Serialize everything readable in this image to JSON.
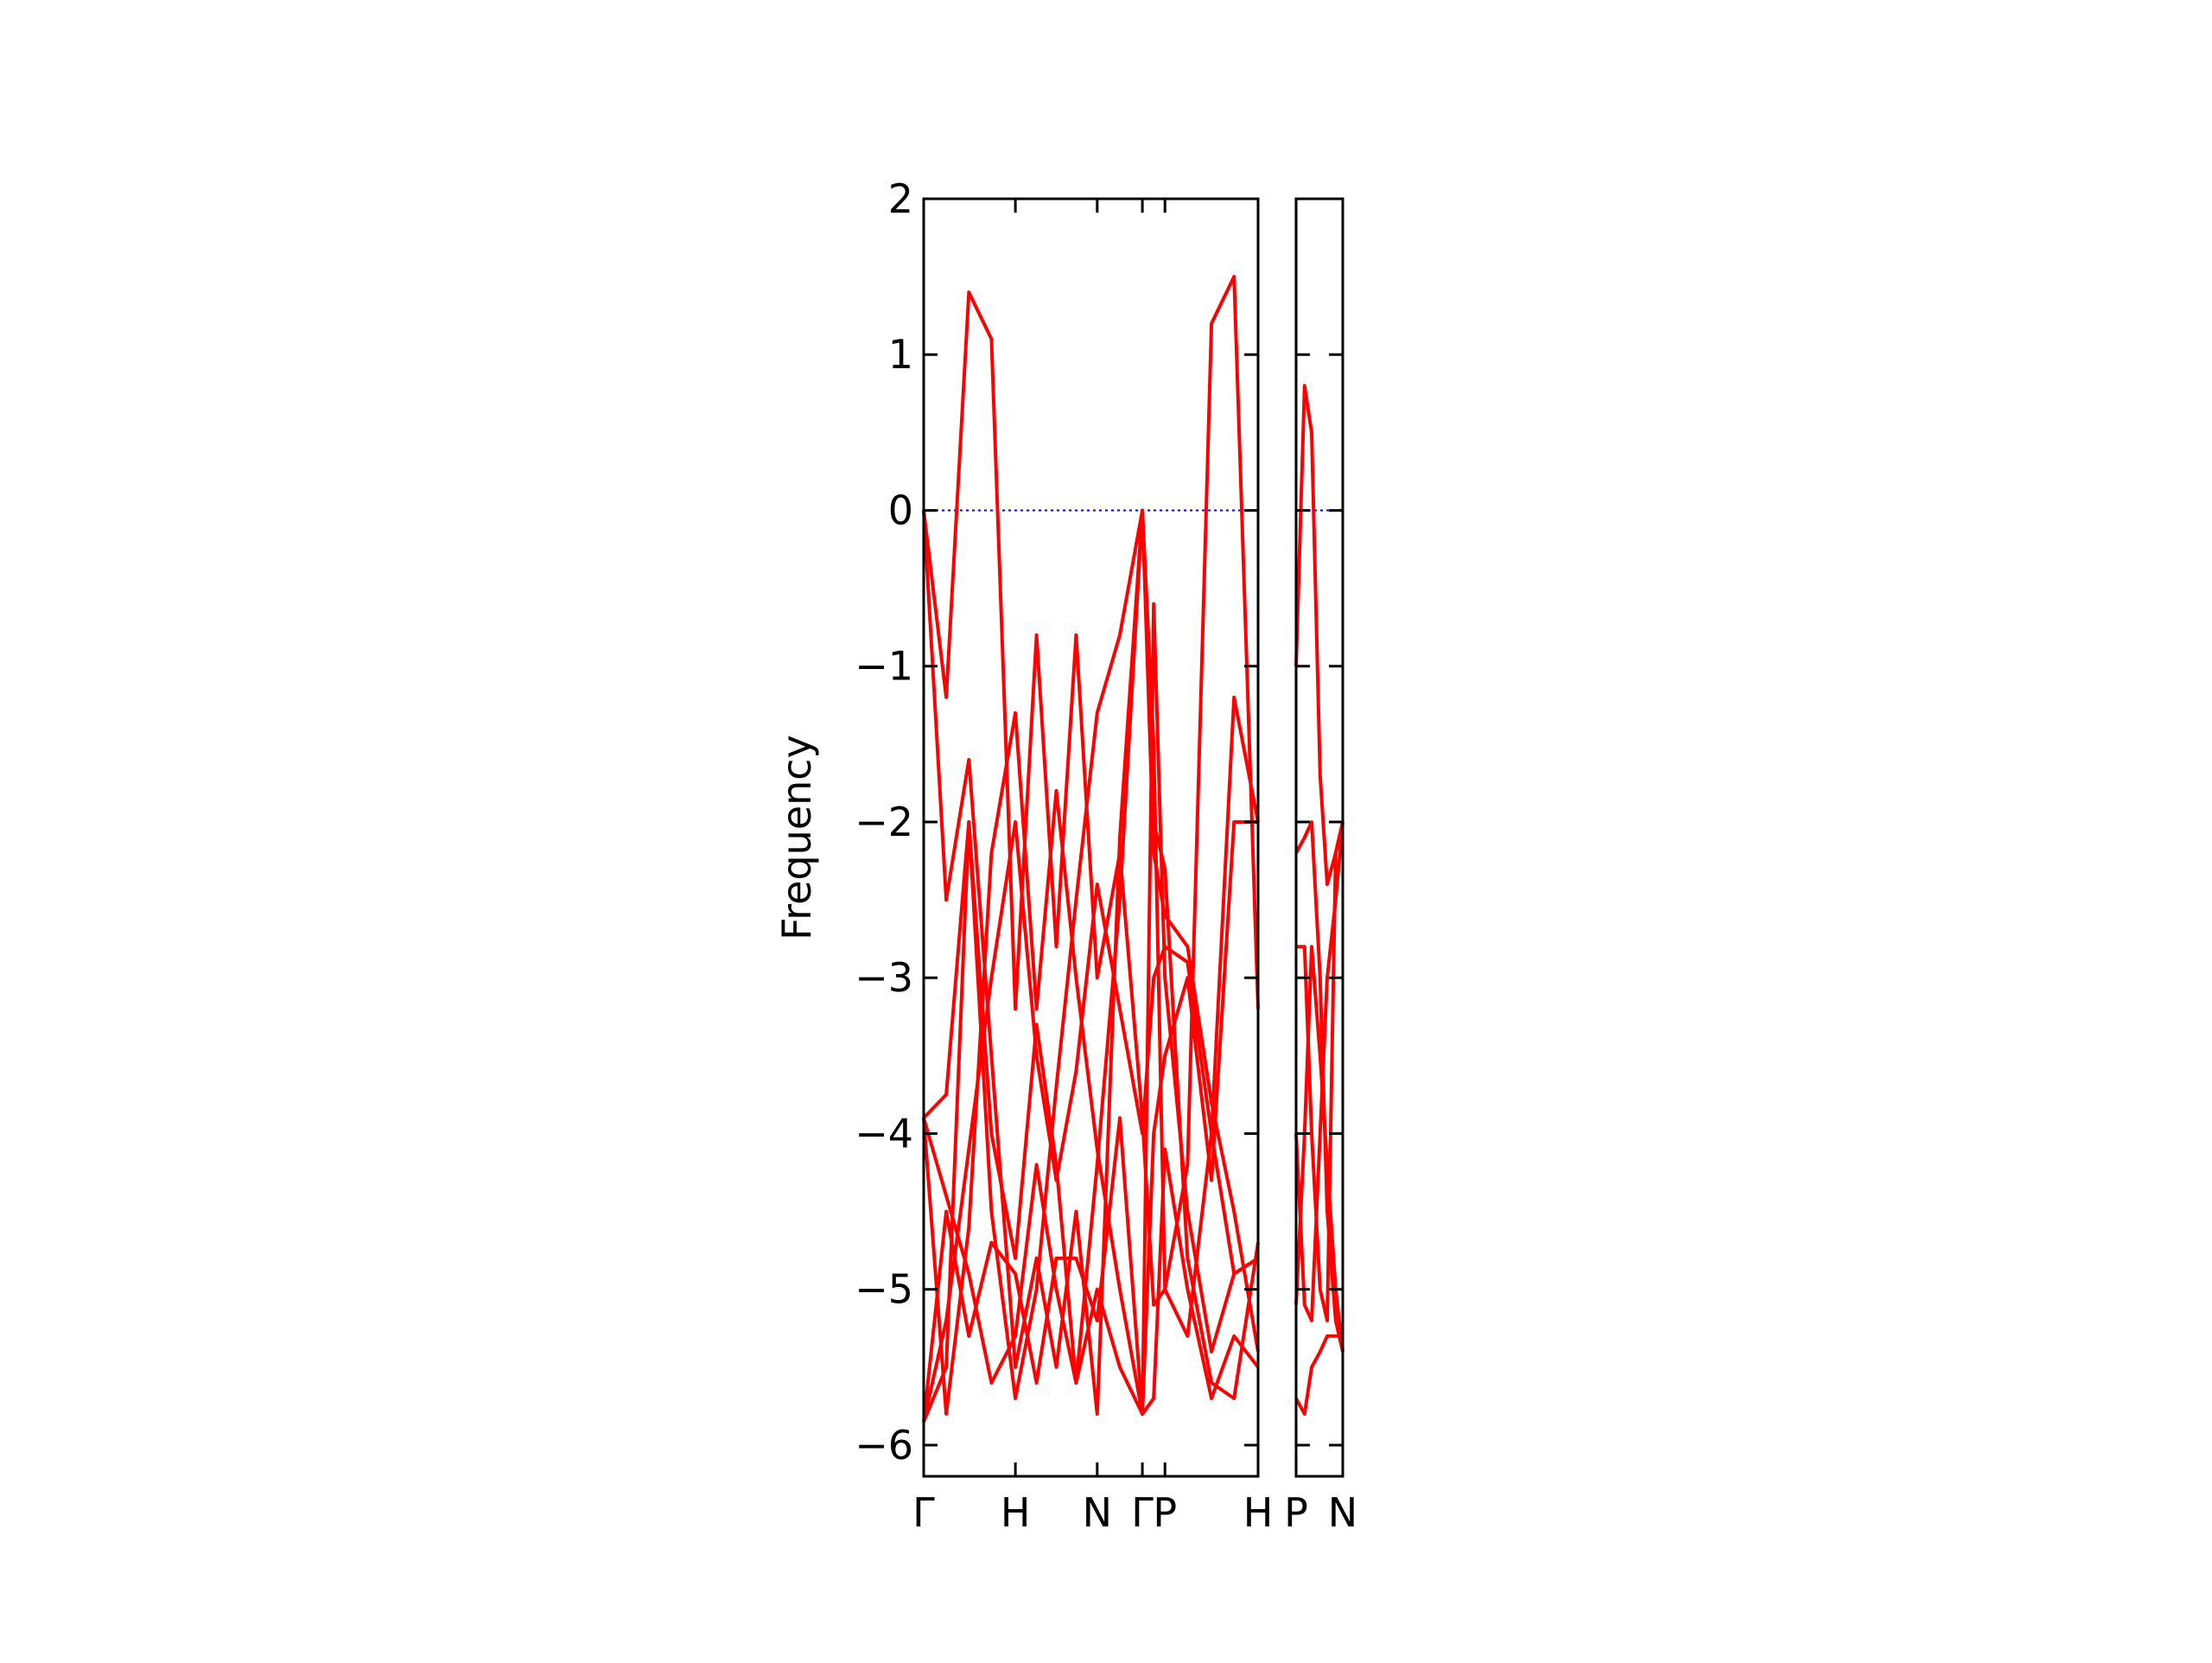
{
  "chart_data": [
    {
      "type": "line",
      "y_label": "Frequency",
      "x": [
        0,
        16,
        32,
        48,
        65,
        80,
        94,
        108,
        123,
        139,
        155,
        163,
        171,
        187,
        204,
        220,
        237
      ],
      "xlim": [
        0,
        237
      ],
      "xticks": [
        {
          "value": 0,
          "label": "Γ"
        },
        {
          "value": 65,
          "label": "H"
        },
        {
          "value": 123,
          "label": "N"
        },
        {
          "value": 155,
          "label": "Γ"
        },
        {
          "value": 171,
          "label": "P"
        },
        {
          "value": 237,
          "label": "H"
        }
      ],
      "ylim": [
        -6.2,
        2
      ],
      "yticks": [
        {
          "value": -6,
          "label": "−6"
        },
        {
          "value": -5,
          "label": "−5"
        },
        {
          "value": -4,
          "label": "−4"
        },
        {
          "value": -3,
          "label": "−3"
        },
        {
          "value": -2,
          "label": "−2"
        },
        {
          "value": -1,
          "label": "−1"
        },
        0,
        1,
        2
      ],
      "show_ytick_labels": true,
      "zero_line": {
        "value": 0,
        "color": "#0000ff"
      },
      "series": [
        {
          "color": "#ff0000",
          "values": [
            0,
            -1.2,
            1.4,
            1.1,
            -3.2,
            -0.8,
            -2.8,
            -0.8,
            -3.0,
            -2.2,
            -3.9,
            -5.1,
            -5.0,
            -4.2,
            1.2,
            1.5,
            -3.2
          ]
        },
        {
          "color": "#ff0000",
          "values": [
            0,
            -2.5,
            -1.6,
            -3.5,
            -5.5,
            -4.8,
            -5.5,
            -4.5,
            -5.8,
            -2.1,
            0,
            -2.2,
            -2.6,
            -2.8,
            -3.8,
            -4.5,
            -5.4
          ]
        },
        {
          "color": "#ff0000",
          "values": [
            -3.9,
            -5.8,
            -4.6,
            -2.2,
            -1.3,
            -3.2,
            -1.8,
            -3.0,
            -4.1,
            -5.0,
            -5.8,
            -0.6,
            -3.0,
            -4.5,
            -5.4,
            -4.9,
            -4.8
          ]
        },
        {
          "color": "#ff0000",
          "values": [
            -3.9,
            -3.75,
            -2.0,
            -4.0,
            -4.8,
            -3.3,
            -4.2,
            -5.6,
            -4.2,
            -2.5,
            0,
            -2.0,
            -2.3,
            -4.8,
            -5.6,
            -5.7,
            -4.7
          ]
        },
        {
          "color": "#ff0000",
          "values": [
            -5.85,
            -4.5,
            -5.3,
            -4.7,
            -4.9,
            -5.6,
            -4.8,
            -4.8,
            -5.2,
            -3.9,
            -5.8,
            -4.0,
            -3.5,
            -3.0,
            -4.3,
            -2.0,
            -2.0
          ]
        },
        {
          "color": "#ff0000",
          "values": [
            -5.85,
            -5.5,
            -2.0,
            -4.5,
            -5.7,
            -5.0,
            -3.7,
            -2.5,
            -1.3,
            -0.8,
            0,
            -1.5,
            -5.0,
            -5.3,
            -4.0,
            -1.2,
            -2.0
          ]
        },
        {
          "color": "#ff0000",
          "values": [
            -3.9,
            -4.4,
            -4.9,
            -5.6,
            -5.3,
            -4.2,
            -5.0,
            -5.6,
            -5.0,
            -5.5,
            -5.8,
            -5.7,
            -4.1,
            -5.0,
            -5.7,
            -5.3,
            -5.5
          ]
        },
        {
          "color": "#ff0000",
          "values": [
            -5.85,
            -5.2,
            -4.1,
            -3.0,
            -2.0,
            -3.5,
            -4.3,
            -3.6,
            -2.4,
            -3.2,
            -4.0,
            -3.0,
            -2.8,
            -2.9,
            -4.0,
            -4.9,
            -4.8
          ]
        }
      ]
    },
    {
      "type": "line",
      "x": [
        0,
        6,
        11,
        17,
        22,
        28,
        33
      ],
      "xlim": [
        0,
        33
      ],
      "xticks": [
        {
          "value": 0,
          "label": "P"
        },
        {
          "value": 33,
          "label": "N"
        }
      ],
      "ylim": [
        -6.2,
        2
      ],
      "yticks": [
        -6,
        -5,
        -4,
        -3,
        -2,
        -1,
        0,
        1,
        2
      ],
      "show_ytick_labels": false,
      "zero_line": {
        "value": 0,
        "color": "#0000ff"
      },
      "series": [
        {
          "color": "#ff0000",
          "values": [
            -1.0,
            0.8,
            0.5,
            -1.7,
            -2.4,
            -2.2,
            -2.0
          ]
        },
        {
          "color": "#ff0000",
          "values": [
            -2.2,
            -2.1,
            -2.0,
            -3.0,
            -4.5,
            -5.2,
            -5.4
          ]
        },
        {
          "color": "#ff0000",
          "values": [
            -2.8,
            -2.8,
            -4.0,
            -5.0,
            -5.2,
            -2.2,
            -2.0
          ]
        },
        {
          "color": "#ff0000",
          "values": [
            -5.7,
            -5.8,
            -5.5,
            -5.4,
            -5.3,
            -5.3,
            -5.3
          ]
        },
        {
          "color": "#ff0000",
          "values": [
            -4.0,
            -5.1,
            -5.2,
            -4.0,
            -3.0,
            -2.5,
            -2.0
          ]
        },
        {
          "color": "#ff0000",
          "values": [
            -5.1,
            -4.0,
            -2.8,
            -3.5,
            -4.2,
            -5.0,
            -5.4
          ]
        }
      ]
    }
  ]
}
